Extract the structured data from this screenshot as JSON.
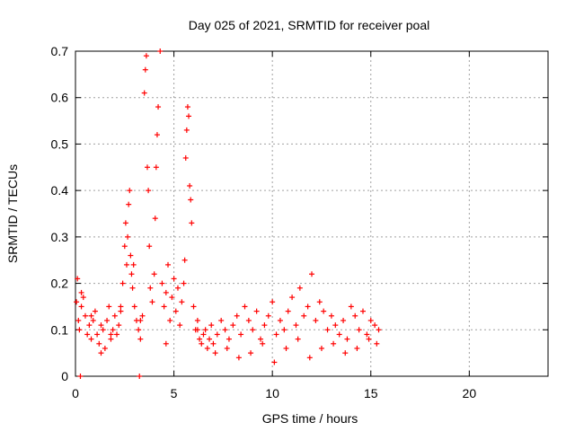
{
  "chart_data": {
    "type": "scatter",
    "title": "Day 025 of 2021, SRMTID for receiver poal",
    "xlabel": "GPS time / hours",
    "ylabel": "SRMTID / TECUs",
    "xlim": [
      0,
      24
    ],
    "ylim": [
      0,
      0.7
    ],
    "xticks": [
      0,
      5,
      10,
      15,
      20
    ],
    "xtick_labels": [
      "0",
      "5",
      "10",
      "15",
      "20"
    ],
    "yticks": [
      0,
      0.1,
      0.2,
      0.3,
      0.4,
      0.5,
      0.6,
      0.7
    ],
    "ytick_labels": [
      "0",
      "0.1",
      "0.2",
      "0.3",
      "0.4",
      "0.5",
      "0.6",
      "0.7"
    ],
    "grid": true,
    "marker": "+",
    "marker_color": "#ff0000",
    "series": [
      {
        "name": "SRMTID",
        "x": [
          0.05,
          0.1,
          0.15,
          0.2,
          0.3,
          0.4,
          0.5,
          0.6,
          0.7,
          0.8,
          0.9,
          1.0,
          1.1,
          1.2,
          1.3,
          1.4,
          1.5,
          1.6,
          1.7,
          1.8,
          1.9,
          2.0,
          2.1,
          2.2,
          2.3,
          2.4,
          2.5,
          2.55,
          2.6,
          2.65,
          2.7,
          2.75,
          2.8,
          2.85,
          2.9,
          2.95,
          3.0,
          3.1,
          3.2,
          3.3,
          3.4,
          3.5,
          3.55,
          3.6,
          3.65,
          3.7,
          3.75,
          3.8,
          3.9,
          4.0,
          4.05,
          4.1,
          4.15,
          4.2,
          4.3,
          4.4,
          4.5,
          4.6,
          4.7,
          4.8,
          4.9,
          5.0,
          5.1,
          5.2,
          5.3,
          5.4,
          5.5,
          5.55,
          5.6,
          5.65,
          5.7,
          5.75,
          5.8,
          5.85,
          5.9,
          6.0,
          6.1,
          6.2,
          6.3,
          6.4,
          6.5,
          6.6,
          6.7,
          6.8,
          6.9,
          7.0,
          7.2,
          7.4,
          7.6,
          7.8,
          8.0,
          8.2,
          8.4,
          8.6,
          8.8,
          9.0,
          9.2,
          9.4,
          9.6,
          9.8,
          10.0,
          10.2,
          10.4,
          10.6,
          10.8,
          11.0,
          11.2,
          11.4,
          11.6,
          11.8,
          12.0,
          12.2,
          12.4,
          12.6,
          12.8,
          13.0,
          13.2,
          13.4,
          13.6,
          13.8,
          14.0,
          14.2,
          14.4,
          14.6,
          14.8,
          15.0,
          15.2,
          15.4,
          0.3,
          0.8,
          1.3,
          1.8,
          2.3,
          3.3,
          4.6,
          6.2,
          7.1,
          7.7,
          8.3,
          8.9,
          9.5,
          10.1,
          10.7,
          11.3,
          11.9,
          12.5,
          13.1,
          13.7,
          14.3,
          14.9,
          15.3,
          0.25,
          3.25
        ],
        "y": [
          0.16,
          0.21,
          0.12,
          0.1,
          0.15,
          0.17,
          0.13,
          0.09,
          0.11,
          0.08,
          0.12,
          0.14,
          0.09,
          0.07,
          0.11,
          0.1,
          0.06,
          0.12,
          0.15,
          0.08,
          0.1,
          0.13,
          0.09,
          0.11,
          0.14,
          0.2,
          0.28,
          0.33,
          0.24,
          0.3,
          0.37,
          0.4,
          0.26,
          0.22,
          0.19,
          0.24,
          0.15,
          0.12,
          0.1,
          0.08,
          0.13,
          0.61,
          0.66,
          0.69,
          0.45,
          0.4,
          0.28,
          0.19,
          0.16,
          0.22,
          0.34,
          0.45,
          0.52,
          0.58,
          0.7,
          0.2,
          0.15,
          0.18,
          0.24,
          0.12,
          0.17,
          0.21,
          0.14,
          0.19,
          0.11,
          0.16,
          0.2,
          0.25,
          0.47,
          0.53,
          0.58,
          0.56,
          0.41,
          0.38,
          0.33,
          0.15,
          0.1,
          0.12,
          0.08,
          0.07,
          0.09,
          0.1,
          0.06,
          0.08,
          0.11,
          0.07,
          0.09,
          0.12,
          0.1,
          0.08,
          0.11,
          0.13,
          0.09,
          0.15,
          0.12,
          0.1,
          0.14,
          0.08,
          0.11,
          0.13,
          0.16,
          0.09,
          0.12,
          0.1,
          0.14,
          0.17,
          0.11,
          0.19,
          0.13,
          0.15,
          0.22,
          0.12,
          0.16,
          0.14,
          0.1,
          0.13,
          0.11,
          0.09,
          0.12,
          0.08,
          0.15,
          0.13,
          0.1,
          0.14,
          0.09,
          0.12,
          0.11,
          0.1,
          0.18,
          0.13,
          0.05,
          0.09,
          0.15,
          0.12,
          0.07,
          0.1,
          0.05,
          0.06,
          0.04,
          0.05,
          0.07,
          0.03,
          0.06,
          0.08,
          0.04,
          0.06,
          0.07,
          0.05,
          0.06,
          0.08,
          0.07,
          0.0,
          0.0
        ]
      }
    ]
  }
}
